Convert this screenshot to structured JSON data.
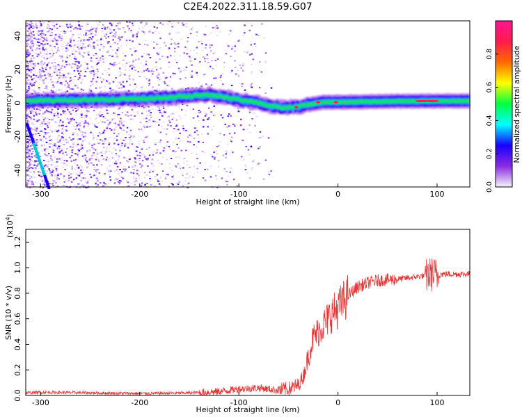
{
  "title": "C2E4.2022.311.18.59.G07",
  "colors": {
    "snr_line": "#e83535",
    "spectrogram_ridge": [
      "#3f00ff",
      "#00c8d8",
      "#18e640",
      "#ff2020"
    ],
    "colorbar_stops": [
      "#f7f3fb",
      "#8a2be2",
      "#1a00ff",
      "#00ffff",
      "#00ff40",
      "#ffff00",
      "#ff6a00",
      "#ff1b4b",
      "#ff1493"
    ]
  },
  "chart_data": [
    {
      "type": "heatmap",
      "title": "C2E4.2022.311.18.59.G07",
      "xlabel": "Height of straight line (km)",
      "ylabel": "Frequency (Hz)",
      "xlim": [
        -315,
        133
      ],
      "ylim": [
        -50,
        49
      ],
      "x_ticks": [
        -300,
        -200,
        -100,
        0,
        100
      ],
      "y_ticks": [
        -40,
        -20,
        0,
        20,
        40
      ],
      "x_tick_labels": [
        "-300",
        "-200",
        "-100",
        "0",
        "100"
      ],
      "y_tick_labels": [
        "-40",
        "-20",
        "0",
        "20",
        "40"
      ],
      "grid": false,
      "ridge_center_hz": [
        {
          "x": -315,
          "y": 1
        },
        {
          "x": -300,
          "y": 1.5
        },
        {
          "x": -250,
          "y": 2
        },
        {
          "x": -200,
          "y": 2.5
        },
        {
          "x": -150,
          "y": 4
        },
        {
          "x": -130,
          "y": 5
        },
        {
          "x": -110,
          "y": 3
        },
        {
          "x": -90,
          "y": 1
        },
        {
          "x": -70,
          "y": -1.5
        },
        {
          "x": -55,
          "y": -3
        },
        {
          "x": -45,
          "y": -2.5
        },
        {
          "x": -30,
          "y": -1
        },
        {
          "x": -15,
          "y": 0.5
        },
        {
          "x": 0,
          "y": 0.5
        },
        {
          "x": 50,
          "y": 1
        },
        {
          "x": 100,
          "y": 1.2
        },
        {
          "x": 133,
          "y": 1.3
        }
      ],
      "colorbar": {
        "label": "Normalized spectral amplitude",
        "range": [
          0,
          1
        ],
        "ticks": [
          0.0,
          0.2,
          0.4,
          0.6,
          0.8
        ],
        "tick_labels": [
          "0.0",
          "0.2",
          "0.4",
          "0.6",
          "0.8"
        ]
      }
    },
    {
      "type": "line",
      "xlabel": "Height of straight line (km)",
      "ylabel": "SNR (10 * v/v)",
      "y_multiplier_label": "(x10",
      "y_multiplier_exp": "4",
      "y_multiplier_close": ")",
      "xlim": [
        -315,
        133
      ],
      "ylim": [
        0,
        1.3
      ],
      "x_ticks": [
        -300,
        -200,
        -100,
        0,
        100
      ],
      "x_tick_labels": [
        "-300",
        "-200",
        "-100",
        "0",
        "100"
      ],
      "y_ticks": [
        0.0,
        0.2,
        0.4,
        0.6,
        0.8,
        1.0,
        1.2
      ],
      "y_tick_labels": [
        "0.0",
        "0.2",
        "0.4",
        "0.6",
        "0.8",
        "1.0",
        "1.2"
      ],
      "grid": false,
      "series": [
        {
          "x": [
            -315,
            -300,
            -250,
            -200,
            -150,
            -120,
            -100,
            -80,
            -60,
            -50,
            -40,
            -35,
            -30,
            -25,
            -20,
            -15,
            -10,
            -5,
            0,
            10,
            20,
            30,
            40,
            60,
            80,
            90,
            95,
            100,
            105,
            110,
            120,
            133
          ],
          "y": [
            0.02,
            0.025,
            0.02,
            0.015,
            0.02,
            0.03,
            0.05,
            0.06,
            0.04,
            0.05,
            0.08,
            0.15,
            0.3,
            0.45,
            0.5,
            0.55,
            0.6,
            0.65,
            0.68,
            0.78,
            0.85,
            0.88,
            0.9,
            0.91,
            0.93,
            0.94,
            0.95,
            0.94,
            0.95,
            0.95,
            0.95,
            0.95
          ]
        }
      ]
    }
  ]
}
